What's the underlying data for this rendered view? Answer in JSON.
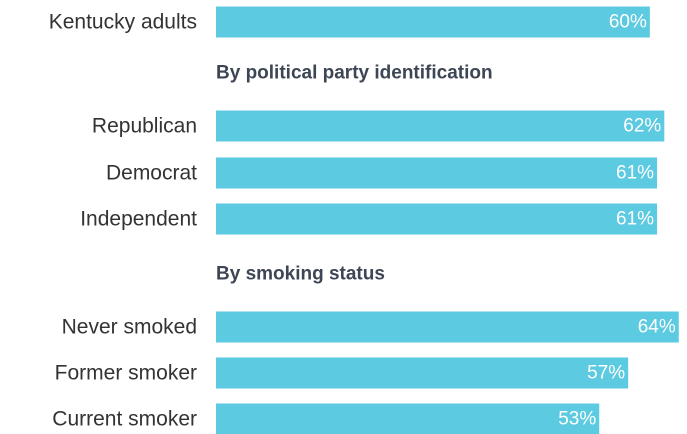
{
  "chart_data": {
    "type": "bar",
    "orientation": "horizontal",
    "bar_color": "#5ccae0",
    "value_suffix": "%",
    "xlim": [
      0,
      65
    ],
    "grid": false,
    "groups": [
      {
        "title": "",
        "categories": [
          "Kentucky adults"
        ],
        "values": [
          60
        ]
      },
      {
        "title": "By political party identification",
        "categories": [
          "Republican",
          "Democrat",
          "Independent"
        ],
        "values": [
          62,
          61,
          61
        ]
      },
      {
        "title": "By smoking status",
        "categories": [
          "Never smoked",
          "Former smoker",
          "Current smoker"
        ],
        "values": [
          64,
          57,
          53
        ]
      }
    ]
  }
}
